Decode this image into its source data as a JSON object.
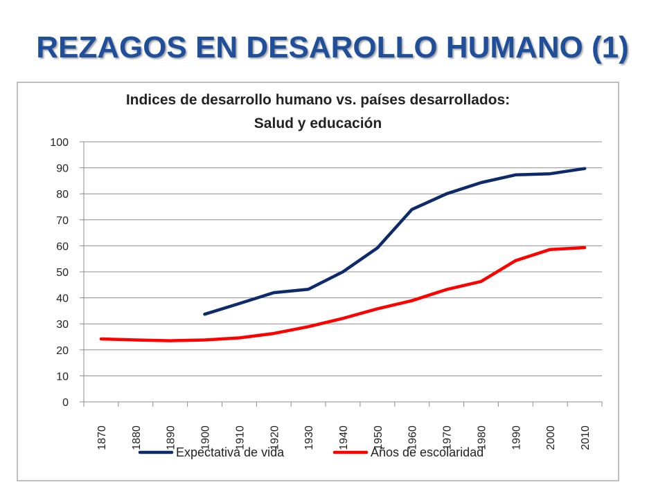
{
  "slide": {
    "title": "REZAGOS EN DESAROLLO HUMANO (1)"
  },
  "chart_data": {
    "type": "line",
    "title": "Indices de desarrollo humano vs. países desarrollados:",
    "subtitle": "Salud y educación",
    "xlabel": "",
    "ylabel": "",
    "categories": [
      "1870",
      "1880",
      "1890",
      "1900",
      "1910",
      "1920",
      "1930",
      "1940",
      "1950",
      "1960",
      "1970",
      "1980",
      "1990",
      "2000",
      "2010"
    ],
    "ylim": [
      0,
      100
    ],
    "yticks": [
      "0",
      "10",
      "20",
      "30",
      "40",
      "50",
      "60",
      "70",
      "80",
      "90",
      "100"
    ],
    "grid": true,
    "legend_position": "bottom",
    "series": [
      {
        "name": "Expectativa de vida",
        "color": "#0D2A6B",
        "values": [
          null,
          null,
          null,
          33.7,
          37.8,
          42.0,
          43.3,
          50.0,
          59.2,
          74.0,
          80.0,
          84.3,
          87.3,
          87.7,
          89.7
        ]
      },
      {
        "name": "Años de escolaridad",
        "color": "#FF0000",
        "values": [
          24.2,
          23.8,
          23.5,
          23.8,
          24.6,
          26.3,
          28.9,
          32.1,
          35.8,
          38.9,
          43.2,
          46.3,
          54.3,
          58.6,
          59.3
        ]
      }
    ]
  }
}
